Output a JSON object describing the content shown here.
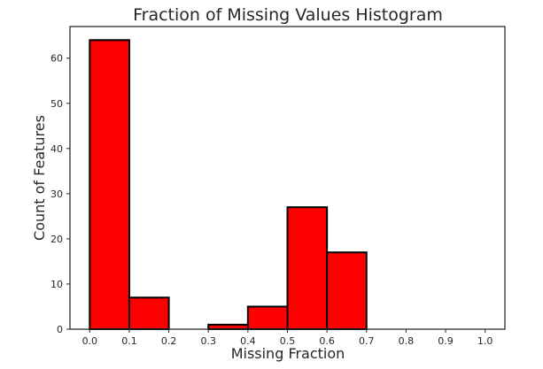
{
  "chart_data": {
    "type": "bar",
    "title": "Fraction of Missing Values Histogram",
    "xlabel": "Missing Fraction",
    "ylabel": "Count of Features",
    "bins": [
      {
        "start": 0.0,
        "end": 0.1,
        "count": 64
      },
      {
        "start": 0.1,
        "end": 0.2,
        "count": 7
      },
      {
        "start": 0.2,
        "end": 0.3,
        "count": 0
      },
      {
        "start": 0.3,
        "end": 0.4,
        "count": 1
      },
      {
        "start": 0.4,
        "end": 0.5,
        "count": 5
      },
      {
        "start": 0.5,
        "end": 0.6,
        "count": 27
      },
      {
        "start": 0.6,
        "end": 0.7,
        "count": 17
      }
    ],
    "xlim": [
      -0.05,
      1.05
    ],
    "ylim": [
      0,
      67
    ],
    "x_ticks": [
      "0.0",
      "0.1",
      "0.2",
      "0.3",
      "0.4",
      "0.5",
      "0.6",
      "0.7",
      "0.8",
      "0.9",
      "1.0"
    ],
    "y_ticks": [
      "0",
      "10",
      "20",
      "30",
      "40",
      "50",
      "60"
    ],
    "grid": false,
    "bar_color": "#ff0000",
    "edge_color": "#000000"
  }
}
